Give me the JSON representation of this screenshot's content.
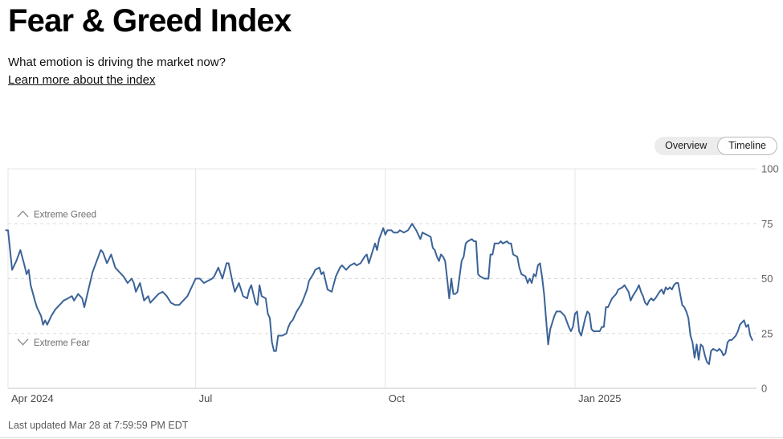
{
  "header": {
    "title": "Fear & Greed Index",
    "subtitle": "What emotion is driving the market now?",
    "link_label": "Learn more about the index"
  },
  "view_toggle": {
    "options": [
      {
        "label": "Overview",
        "selected": false
      },
      {
        "label": "Timeline",
        "selected": true
      }
    ]
  },
  "chart_data": {
    "type": "line",
    "title": "Fear & Greed Index — Timeline",
    "series_name": "Fear & Greed score",
    "x_unit": "days since Apr 1, 2024",
    "xlim": [
      -2,
      363
    ],
    "ylim": [
      0,
      100
    ],
    "y_axis_side": "right",
    "y_ticks": [
      0,
      25,
      50,
      75,
      100
    ],
    "x_ticks": [
      {
        "label": "Apr 2024",
        "day": 0
      },
      {
        "label": "Jul",
        "day": 91
      },
      {
        "label": "Oct",
        "day": 183
      },
      {
        "label": "Jan 2025",
        "day": 275
      }
    ],
    "zone_labels": [
      {
        "label": "Extreme Greed",
        "chevron": "up",
        "at_value": 75
      },
      {
        "label": "Extreme Fear",
        "chevron": "down",
        "at_value": 25
      }
    ],
    "grid": {
      "vertical": "solid",
      "horizontal_dashed_at": [
        25,
        50,
        75
      ],
      "horizontal_solid_at": [
        0,
        100
      ]
    },
    "colors": {
      "line": "#3b6397",
      "grid_light": "#e4e4e4",
      "grid_dashed": "#dcdcdc",
      "axis_bottom": "#c6c6c6",
      "y_tick_text": "#616161",
      "x_tick_text": "#4a4a4a",
      "zone_text": "#6d6d6d",
      "chevron": "#8f8f8f"
    },
    "points": [
      [
        -1,
        72
      ],
      [
        0,
        72
      ],
      [
        2,
        54
      ],
      [
        4,
        58
      ],
      [
        6,
        63
      ],
      [
        8,
        56
      ],
      [
        9,
        52
      ],
      [
        10,
        54
      ],
      [
        11,
        47
      ],
      [
        13,
        40
      ],
      [
        14,
        37
      ],
      [
        16,
        33
      ],
      [
        17,
        29
      ],
      [
        18,
        31
      ],
      [
        19,
        29
      ],
      [
        21,
        33
      ],
      [
        23,
        36
      ],
      [
        25,
        38
      ],
      [
        27,
        40
      ],
      [
        29,
        41
      ],
      [
        31,
        42
      ],
      [
        32,
        40
      ],
      [
        34,
        43
      ],
      [
        36,
        41
      ],
      [
        37,
        37
      ],
      [
        39,
        45
      ],
      [
        41,
        53
      ],
      [
        43,
        58
      ],
      [
        45,
        63
      ],
      [
        46,
        62
      ],
      [
        48,
        57
      ],
      [
        50,
        61
      ],
      [
        52,
        55
      ],
      [
        54,
        53
      ],
      [
        56,
        51
      ],
      [
        58,
        48
      ],
      [
        60,
        50
      ],
      [
        61,
        48
      ],
      [
        62,
        44
      ],
      [
        64,
        48
      ],
      [
        66,
        40
      ],
      [
        68,
        42
      ],
      [
        69,
        39
      ],
      [
        71,
        41
      ],
      [
        73,
        43
      ],
      [
        75,
        44
      ],
      [
        77,
        42
      ],
      [
        79,
        39
      ],
      [
        81,
        38
      ],
      [
        83,
        38
      ],
      [
        85,
        40
      ],
      [
        87,
        42
      ],
      [
        89,
        46
      ],
      [
        91,
        50
      ],
      [
        93,
        50
      ],
      [
        95,
        48
      ],
      [
        97,
        49
      ],
      [
        99,
        50
      ],
      [
        100,
        51
      ],
      [
        102,
        55
      ],
      [
        104,
        50
      ],
      [
        106,
        57
      ],
      [
        107,
        57
      ],
      [
        109,
        48
      ],
      [
        110,
        44
      ],
      [
        112,
        48
      ],
      [
        114,
        42
      ],
      [
        116,
        41
      ],
      [
        117,
        45
      ],
      [
        118,
        47
      ],
      [
        120,
        39
      ],
      [
        121,
        38
      ],
      [
        122,
        47
      ],
      [
        123,
        42
      ],
      [
        125,
        41
      ],
      [
        126,
        34
      ],
      [
        127,
        32
      ],
      [
        128,
        21
      ],
      [
        129,
        17
      ],
      [
        130,
        17
      ],
      [
        131,
        24
      ],
      [
        133,
        24
      ],
      [
        135,
        25
      ],
      [
        136,
        28
      ],
      [
        137,
        30
      ],
      [
        138,
        31
      ],
      [
        140,
        35
      ],
      [
        142,
        38
      ],
      [
        143,
        40
      ],
      [
        145,
        45
      ],
      [
        146,
        49
      ],
      [
        148,
        52
      ],
      [
        149,
        54
      ],
      [
        151,
        55
      ],
      [
        152,
        52
      ],
      [
        153,
        53
      ],
      [
        155,
        45
      ],
      [
        157,
        44
      ],
      [
        159,
        51
      ],
      [
        161,
        55
      ],
      [
        162,
        56
      ],
      [
        164,
        54
      ],
      [
        166,
        56
      ],
      [
        168,
        57
      ],
      [
        169,
        56
      ],
      [
        171,
        57
      ],
      [
        173,
        60
      ],
      [
        174,
        61
      ],
      [
        175,
        57
      ],
      [
        177,
        63
      ],
      [
        178,
        66
      ],
      [
        179,
        63
      ],
      [
        180,
        68
      ],
      [
        182,
        73
      ],
      [
        183,
        70
      ],
      [
        184,
        72
      ],
      [
        186,
        72
      ],
      [
        187,
        71
      ],
      [
        189,
        71
      ],
      [
        190,
        72
      ],
      [
        192,
        71
      ],
      [
        194,
        72
      ],
      [
        196,
        75
      ],
      [
        198,
        72
      ],
      [
        199,
        70
      ],
      [
        200,
        68
      ],
      [
        201,
        71
      ],
      [
        203,
        70
      ],
      [
        205,
        69
      ],
      [
        206,
        64
      ],
      [
        207,
        63
      ],
      [
        208,
        60
      ],
      [
        209,
        58
      ],
      [
        210,
        61
      ],
      [
        211,
        60
      ],
      [
        212,
        58
      ],
      [
        213,
        50
      ],
      [
        214,
        41
      ],
      [
        215,
        50
      ],
      [
        216,
        43
      ],
      [
        217,
        43
      ],
      [
        218,
        44
      ],
      [
        220,
        58
      ],
      [
        221,
        60
      ],
      [
        222,
        66
      ],
      [
        223,
        67
      ],
      [
        225,
        68
      ],
      [
        226,
        67
      ],
      [
        227,
        67
      ],
      [
        228,
        52
      ],
      [
        229,
        51
      ],
      [
        231,
        50
      ],
      [
        232,
        50
      ],
      [
        233,
        50
      ],
      [
        234,
        61
      ],
      [
        235,
        61
      ],
      [
        236,
        66
      ],
      [
        238,
        66
      ],
      [
        239,
        67
      ],
      [
        240,
        66
      ],
      [
        242,
        67
      ],
      [
        243,
        66
      ],
      [
        244,
        66
      ],
      [
        245,
        61
      ],
      [
        247,
        60
      ],
      [
        248,
        55
      ],
      [
        249,
        52
      ],
      [
        251,
        51
      ],
      [
        252,
        48
      ],
      [
        253,
        50
      ],
      [
        254,
        48
      ],
      [
        255,
        52
      ],
      [
        256,
        51
      ],
      [
        257,
        56
      ],
      [
        258,
        57
      ],
      [
        259,
        51
      ],
      [
        260,
        43
      ],
      [
        261,
        31
      ],
      [
        262,
        20
      ],
      [
        263,
        27
      ],
      [
        264,
        30
      ],
      [
        265,
        33
      ],
      [
        266,
        35
      ],
      [
        268,
        35
      ],
      [
        269,
        34
      ],
      [
        270,
        33
      ],
      [
        272,
        28
      ],
      [
        273,
        26
      ],
      [
        274,
        28
      ],
      [
        275,
        34
      ],
      [
        276,
        35
      ],
      [
        277,
        26
      ],
      [
        278,
        24
      ],
      [
        280,
        32
      ],
      [
        281,
        35
      ],
      [
        282,
        34
      ],
      [
        283,
        27
      ],
      [
        284,
        26
      ],
      [
        286,
        26
      ],
      [
        287,
        26
      ],
      [
        288,
        28
      ],
      [
        289,
        28
      ],
      [
        290,
        37
      ],
      [
        291,
        37
      ],
      [
        292,
        39
      ],
      [
        293,
        41
      ],
      [
        295,
        43
      ],
      [
        296,
        45
      ],
      [
        298,
        46
      ],
      [
        299,
        47
      ],
      [
        301,
        44
      ],
      [
        302,
        40
      ],
      [
        303,
        42
      ],
      [
        305,
        45
      ],
      [
        306,
        47
      ],
      [
        307,
        44
      ],
      [
        308,
        42
      ],
      [
        309,
        39
      ],
      [
        310,
        38
      ],
      [
        311,
        40
      ],
      [
        312,
        41
      ],
      [
        313,
        40
      ],
      [
        314,
        41
      ],
      [
        316,
        44
      ],
      [
        317,
        45
      ],
      [
        318,
        43
      ],
      [
        319,
        46
      ],
      [
        320,
        45
      ],
      [
        321,
        46
      ],
      [
        322,
        45
      ],
      [
        323,
        47
      ],
      [
        324,
        48
      ],
      [
        325,
        48
      ],
      [
        327,
        38
      ],
      [
        328,
        37
      ],
      [
        329,
        35
      ],
      [
        330,
        32
      ],
      [
        331,
        24
      ],
      [
        332,
        21
      ],
      [
        333,
        14
      ],
      [
        334,
        20
      ],
      [
        335,
        13
      ],
      [
        336,
        20
      ],
      [
        337,
        19
      ],
      [
        338,
        15
      ],
      [
        339,
        12
      ],
      [
        340,
        11
      ],
      [
        341,
        17
      ],
      [
        342,
        18
      ],
      [
        344,
        17
      ],
      [
        345,
        18
      ],
      [
        346,
        17
      ],
      [
        347,
        15
      ],
      [
        348,
        16
      ],
      [
        349,
        21
      ],
      [
        350,
        22
      ],
      [
        351,
        22
      ],
      [
        352,
        23
      ],
      [
        353,
        24
      ],
      [
        354,
        26
      ],
      [
        355,
        29
      ],
      [
        356,
        30
      ],
      [
        357,
        31
      ],
      [
        358,
        28
      ],
      [
        359,
        29
      ],
      [
        360,
        24
      ],
      [
        361,
        22
      ]
    ]
  },
  "footer": {
    "last_updated": "Last updated Mar 28 at 7:59:59 PM EDT"
  }
}
